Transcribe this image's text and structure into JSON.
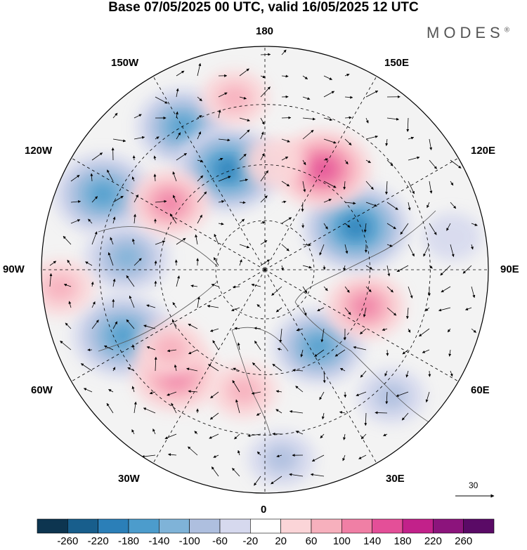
{
  "title": "Base 07/05/2025 00 UTC, valid 16/05/2025 12 UTC",
  "logo": "MODES",
  "logo_mark": "®",
  "longitude_labels": {
    "top": "180",
    "bottom": "0",
    "left": "90W",
    "right": "90E",
    "upper_left_1": "150W",
    "upper_left_2": "120W",
    "lower_left_1": "60W",
    "lower_left_2": "30W",
    "upper_right_1": "150E",
    "upper_right_2": "120E",
    "lower_right_1": "60E",
    "lower_right_2": "30E"
  },
  "vector_scale_label": "30",
  "colorbar": {
    "ticks": [
      "-260",
      "-220",
      "-180",
      "-140",
      "-100",
      "-60",
      "-20",
      "20",
      "60",
      "100",
      "140",
      "180",
      "220",
      "260"
    ],
    "colors": [
      "#0d3550",
      "#185e8c",
      "#2b7fb8",
      "#4c9ccc",
      "#7fb3d8",
      "#aebfdf",
      "#d6d9ee",
      "#ffffff",
      "#fbd5d8",
      "#f7b0bd",
      "#f07fa5",
      "#e44f98",
      "#c2218a",
      "#8c147c",
      "#5a0a66"
    ]
  },
  "anomaly_cells": [
    {
      "lon": -150,
      "dist": 0.74,
      "value": -140
    },
    {
      "lon": -115,
      "dist": 0.8,
      "value": -160
    },
    {
      "lon": -95,
      "dist": 0.62,
      "value": -120
    },
    {
      "lon": -65,
      "dist": 0.7,
      "value": -170
    },
    {
      "lon": -40,
      "dist": 0.62,
      "value": 120
    },
    {
      "lon": 35,
      "dist": 0.42,
      "value": -140
    },
    {
      "lon": 70,
      "dist": 0.48,
      "value": 100
    },
    {
      "lon": 115,
      "dist": 0.45,
      "value": -190
    },
    {
      "lon": 150,
      "dist": 0.52,
      "value": 150
    },
    {
      "lon": -160,
      "dist": 0.48,
      "value": -180
    },
    {
      "lon": -125,
      "dist": 0.52,
      "value": 100
    },
    {
      "lon": -170,
      "dist": 0.78,
      "value": 60
    },
    {
      "lon": 175,
      "dist": 0.48,
      "value": 40
    },
    {
      "lon": -85,
      "dist": 0.92,
      "value": 60
    },
    {
      "lon": -10,
      "dist": 0.55,
      "value": 60
    },
    {
      "lon": 5,
      "dist": 0.85,
      "value": -60
    },
    {
      "lon": 45,
      "dist": 0.8,
      "value": -60
    },
    {
      "lon": 100,
      "dist": 0.85,
      "value": -30
    },
    {
      "lon": -50,
      "dist": 0.55,
      "value": 60
    }
  ]
}
